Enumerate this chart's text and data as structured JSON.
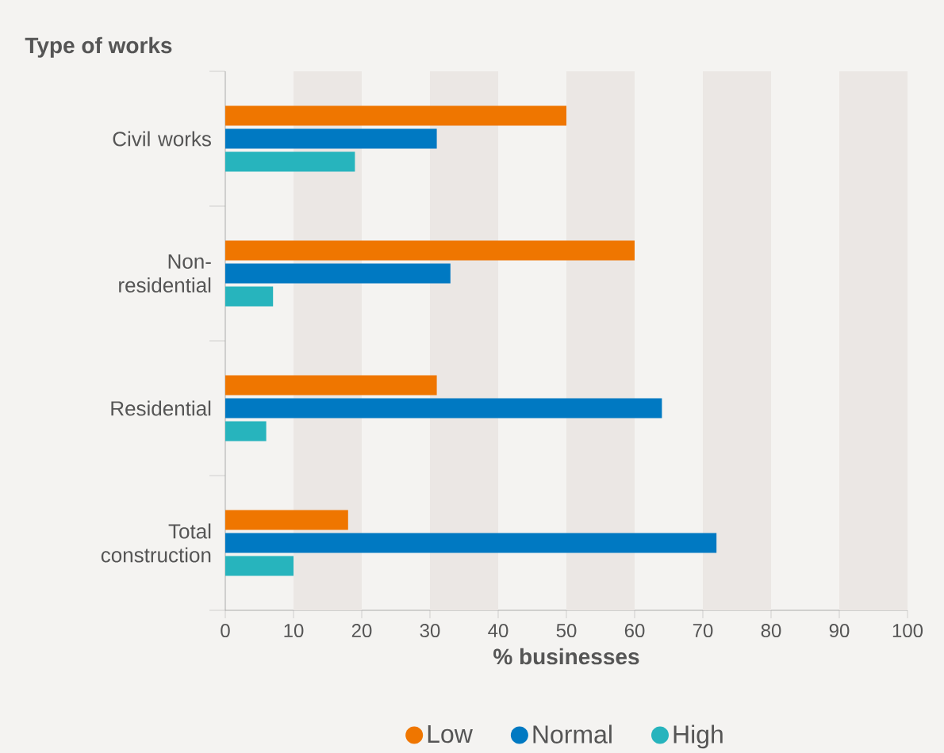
{
  "chart_data": {
    "type": "bar",
    "orientation": "horizontal",
    "ylabel": "Type of works",
    "xlabel": "% businesses",
    "categories": [
      "Civil works",
      "Non-residential",
      "Residential",
      "Total construction"
    ],
    "series": [
      {
        "name": "Low",
        "color": "#ef7600",
        "values": [
          50,
          60,
          31,
          18
        ]
      },
      {
        "name": "Normal",
        "color": "#0079c2",
        "values": [
          31,
          33,
          64,
          72
        ]
      },
      {
        "name": "High",
        "color": "#27b4bd",
        "values": [
          19,
          7,
          6,
          10
        ]
      }
    ],
    "xlim": [
      0,
      100
    ],
    "xticks": [
      0,
      10,
      20,
      30,
      40,
      50,
      60,
      70,
      80,
      90,
      100
    ],
    "bands": [
      {
        "axis": "x",
        "from": 10,
        "to": 20,
        "color": "#ebe7e4"
      },
      {
        "axis": "x",
        "from": 30,
        "to": 40,
        "color": "#ebe7e4"
      },
      {
        "axis": "x",
        "from": 50,
        "to": 60,
        "color": "#ebe7e4"
      },
      {
        "axis": "x",
        "from": 70,
        "to": 80,
        "color": "#ebe7e4"
      },
      {
        "axis": "x",
        "from": 90,
        "to": 100,
        "color": "#ebe7e4"
      }
    ],
    "legend": "bottom",
    "grid": false
  }
}
